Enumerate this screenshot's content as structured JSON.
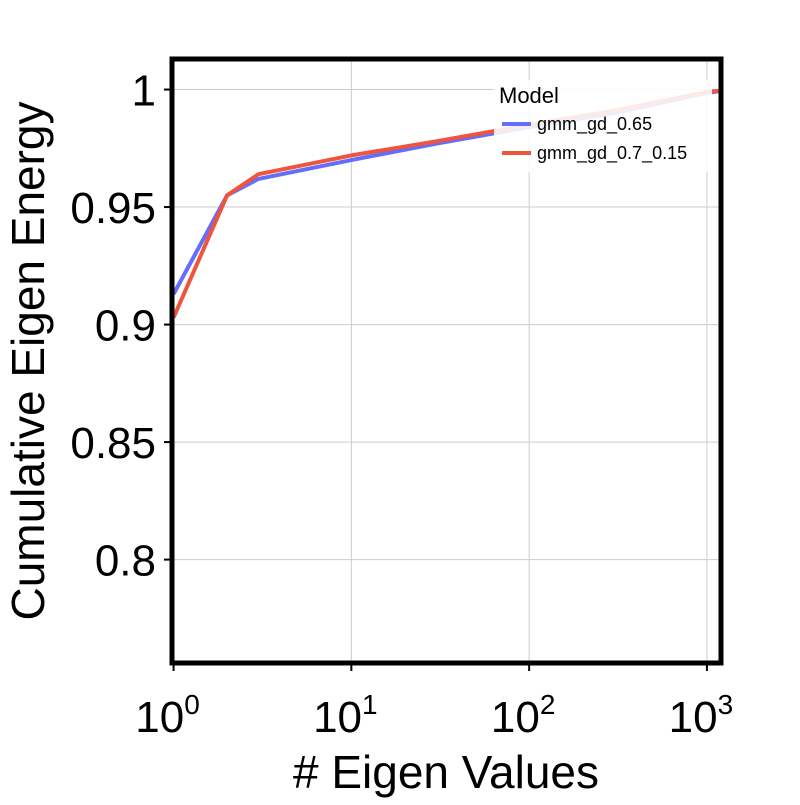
{
  "chart_data": {
    "type": "line",
    "xlabel": "# Eigen Values",
    "ylabel": "Cumulative Eigen Energy",
    "xscale": "log",
    "xlim": [
      0.98,
      1200
    ],
    "ylim": [
      0.756,
      1.013
    ],
    "grid": true,
    "x_ticks": [
      {
        "value": 1,
        "base": "10",
        "exp": "0"
      },
      {
        "value": 10,
        "base": "10",
        "exp": "1"
      },
      {
        "value": 100,
        "base": "10",
        "exp": "2"
      },
      {
        "value": 1000,
        "base": "10",
        "exp": "3"
      }
    ],
    "y_ticks": [
      {
        "value": 0.8,
        "label": "0.8"
      },
      {
        "value": 0.85,
        "label": "0.85"
      },
      {
        "value": 0.9,
        "label": "0.9"
      },
      {
        "value": 0.95,
        "label": "0.95"
      },
      {
        "value": 1.0,
        "label": "1"
      }
    ],
    "legend": {
      "title": "Model",
      "placement": "top-right"
    },
    "series": [
      {
        "name": "gmm_gd_0.65",
        "color": "#636efa",
        "x": [
          1,
          2,
          3,
          10,
          30,
          100,
          300,
          1000,
          1200
        ],
        "y": [
          0.913,
          0.955,
          0.962,
          0.97,
          0.977,
          0.984,
          0.99,
          0.9985,
          0.9995
        ]
      },
      {
        "name": "gmm_gd_0.7_0.15",
        "color": "#ef553b",
        "x": [
          1,
          2,
          3,
          10,
          30,
          100,
          300,
          1000,
          1200
        ],
        "y": [
          0.903,
          0.955,
          0.964,
          0.972,
          0.978,
          0.985,
          0.991,
          0.999,
          0.9995
        ]
      }
    ]
  }
}
